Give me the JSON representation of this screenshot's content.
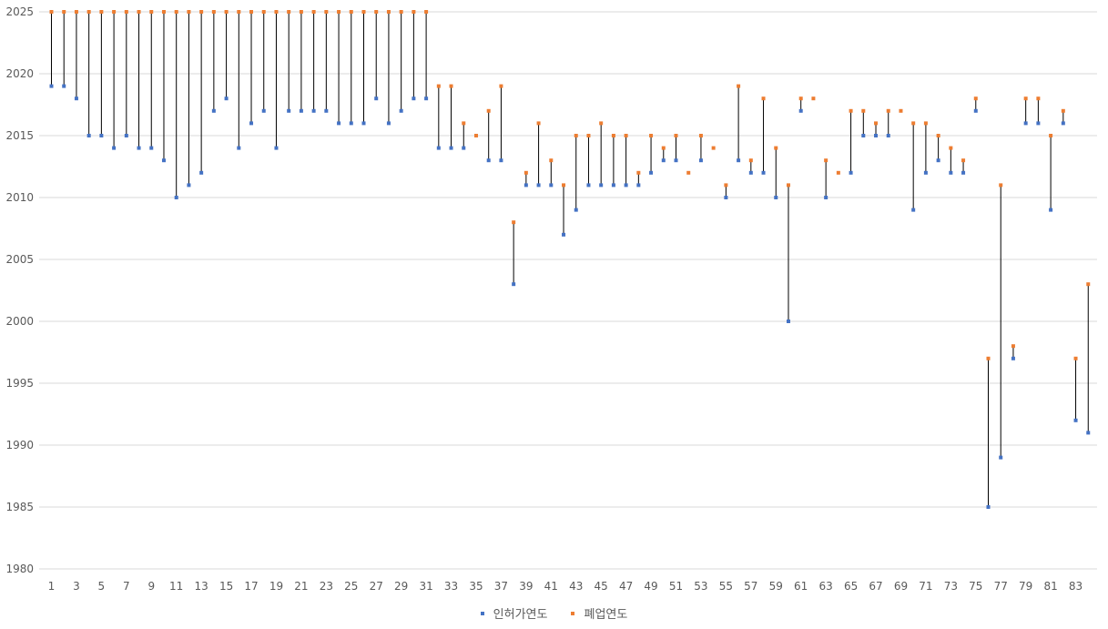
{
  "chart_data": {
    "type": "scatter",
    "x": [
      1,
      2,
      3,
      4,
      5,
      6,
      7,
      8,
      9,
      10,
      11,
      12,
      13,
      14,
      15,
      16,
      17,
      18,
      19,
      20,
      21,
      22,
      23,
      24,
      25,
      26,
      27,
      28,
      29,
      30,
      31,
      32,
      33,
      34,
      35,
      36,
      37,
      38,
      39,
      40,
      41,
      42,
      43,
      44,
      45,
      46,
      47,
      48,
      49,
      50,
      51,
      52,
      53,
      54,
      55,
      56,
      57,
      58,
      59,
      60,
      61,
      62,
      63,
      64,
      65,
      66,
      67,
      68,
      69,
      70,
      71,
      72,
      73,
      74,
      75,
      76,
      77,
      78,
      79,
      80,
      81,
      82,
      83,
      84
    ],
    "x_tick_labels": [
      "1",
      "3",
      "5",
      "7",
      "9",
      "11",
      "13",
      "15",
      "17",
      "19",
      "21",
      "23",
      "25",
      "27",
      "29",
      "31",
      "33",
      "35",
      "37",
      "39",
      "41",
      "43",
      "45",
      "47",
      "49",
      "51",
      "53",
      "55",
      "57",
      "59",
      "61",
      "63",
      "65",
      "67",
      "69",
      "71",
      "73",
      "75",
      "77",
      "79",
      "81",
      "83"
    ],
    "y_ticks": [
      1980,
      1985,
      1990,
      1995,
      2000,
      2005,
      2010,
      2015,
      2020,
      2025
    ],
    "ylim": [
      1980,
      2025
    ],
    "grid": true,
    "legend_position": "bottom",
    "series": [
      {
        "name": "인허가연도",
        "color": "#4472C4",
        "values": [
          2019,
          2019,
          2018,
          2015,
          2015,
          2014,
          2015,
          2014,
          2014,
          2013,
          2010,
          2011,
          2012,
          2017,
          2018,
          2014,
          2016,
          2017,
          2014,
          2017,
          2017,
          2017,
          2017,
          2016,
          2016,
          2016,
          2018,
          2016,
          2017,
          2018,
          2018,
          2014,
          2014,
          2014,
          null,
          2013,
          2013,
          2003,
          2011,
          2011,
          2011,
          2007,
          2009,
          2011,
          2011,
          2011,
          2011,
          2011,
          2012,
          2013,
          2013,
          null,
          2013,
          null,
          2010,
          2013,
          2012,
          2012,
          2010,
          2000,
          2017,
          null,
          2010,
          null,
          2012,
          2015,
          2015,
          2015,
          null,
          2009,
          2012,
          2013,
          2012,
          2012,
          2017,
          1985,
          1989,
          1997,
          2016,
          2016,
          2009,
          2016,
          1992,
          1991
        ]
      },
      {
        "name": "폐업연도",
        "color": "#ED7D31",
        "values": [
          2025,
          2025,
          2025,
          2025,
          2025,
          2025,
          2025,
          2025,
          2025,
          2025,
          2025,
          2025,
          2025,
          2025,
          2025,
          2025,
          2025,
          2025,
          2025,
          2025,
          2025,
          2025,
          2025,
          2025,
          2025,
          2025,
          2025,
          2025,
          2025,
          2025,
          2025,
          2019,
          2019,
          2016,
          2015,
          2017,
          2019,
          2008,
          2012,
          2016,
          2013,
          2011,
          2015,
          2015,
          2016,
          2015,
          2015,
          2012,
          2015,
          2014,
          2015,
          2012,
          2015,
          2014,
          2011,
          2019,
          2013,
          2018,
          2014,
          2011,
          2018,
          2018,
          2013,
          2012,
          2017,
          2017,
          2016,
          2017,
          2017,
          2016,
          2016,
          2015,
          2014,
          2013,
          2018,
          1997,
          2011,
          1998,
          2018,
          2018,
          2015,
          2017,
          1997,
          2003
        ]
      }
    ]
  }
}
